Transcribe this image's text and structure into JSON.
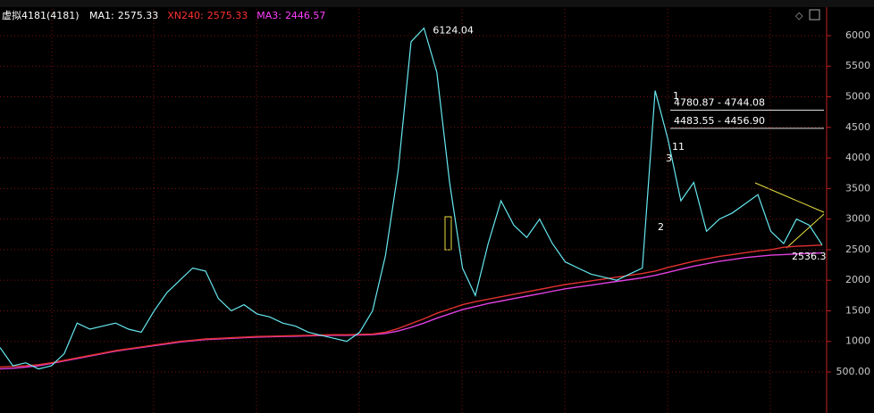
{
  "chart_data": {
    "type": "line",
    "title": "虚拟4181(4181)",
    "categories": [
      null,
      null,
      null,
      null,
      null,
      null,
      null,
      null,
      null,
      null,
      null,
      null,
      null,
      null,
      null,
      null,
      null,
      null,
      null,
      null,
      null,
      null,
      null,
      null,
      null,
      null,
      null,
      null,
      null,
      null,
      null,
      null,
      null,
      null,
      null,
      null,
      null,
      null,
      null,
      null,
      null,
      null,
      null,
      null,
      null,
      null,
      null,
      null,
      null,
      null,
      null,
      null,
      null,
      null,
      null,
      null,
      null,
      null,
      null,
      null,
      null,
      null,
      null,
      null,
      null
    ],
    "series": [
      {
        "name": "MA1:",
        "color": "#66e8f0",
        "label_color": "#ffffff",
        "values": [
          900,
          600,
          650,
          550,
          600,
          800,
          1300,
          1200,
          1250,
          1300,
          1200,
          1150,
          1500,
          1800,
          2000,
          2200,
          2150,
          1700,
          1500,
          1600,
          1450,
          1400,
          1300,
          1250,
          1150,
          1100,
          1050,
          1000,
          1150,
          1500,
          2400,
          3800,
          5900,
          6124.04,
          5400,
          3600,
          2200,
          1750,
          2600,
          3300,
          2900,
          2700,
          3000,
          2600,
          2300,
          2200,
          2100,
          2050,
          2000,
          2100,
          2200,
          5100,
          4300,
          3300,
          3600,
          2800,
          3000,
          3100,
          3250,
          3400,
          2800,
          2600,
          3000,
          2900,
          2575.33
        ]
      },
      {
        "name": "XN240:",
        "color": "#e03030",
        "label_color": "#ff3030",
        "values": [
          580,
          590,
          600,
          620,
          650,
          690,
          730,
          770,
          810,
          850,
          880,
          910,
          940,
          970,
          1000,
          1020,
          1040,
          1050,
          1060,
          1070,
          1080,
          1085,
          1090,
          1095,
          1100,
          1105,
          1110,
          1110,
          1115,
          1120,
          1150,
          1210,
          1290,
          1370,
          1460,
          1530,
          1600,
          1650,
          1690,
          1730,
          1770,
          1810,
          1850,
          1890,
          1930,
          1960,
          1990,
          2020,
          2050,
          2080,
          2110,
          2150,
          2210,
          2260,
          2310,
          2350,
          2390,
          2420,
          2450,
          2480,
          2500,
          2540,
          2555,
          2565,
          2575.33
        ]
      },
      {
        "name": "MA3:",
        "color": "#e040e0",
        "label_color": "#ff40ff",
        "values": [
          550,
          560,
          580,
          600,
          640,
          680,
          720,
          760,
          800,
          840,
          870,
          900,
          930,
          960,
          990,
          1010,
          1030,
          1040,
          1050,
          1060,
          1070,
          1075,
          1080,
          1085,
          1090,
          1095,
          1100,
          1100,
          1105,
          1110,
          1130,
          1170,
          1230,
          1300,
          1380,
          1450,
          1520,
          1570,
          1620,
          1660,
          1700,
          1740,
          1780,
          1820,
          1860,
          1890,
          1920,
          1950,
          1980,
          2010,
          2040,
          2080,
          2130,
          2180,
          2230,
          2270,
          2310,
          2340,
          2370,
          2390,
          2410,
          2420,
          2430,
          2440,
          2446.57
        ]
      }
    ],
    "ylim": [
      -171,
      6583
    ],
    "yticks": [
      {
        "value": 500,
        "label": "500.00"
      },
      1000,
      1500,
      2000,
      2500,
      3000,
      3500,
      4000,
      4500,
      5000,
      5500,
      6000
    ],
    "grid": true,
    "levels": [
      {
        "value": 4780.87,
        "label": "4780.87 - 4744.08"
      },
      {
        "value": 4483.55,
        "label": "4483.55 - 4456.90"
      }
    ],
    "low_label": 2536.3,
    "wave_labels": [
      "1",
      "3",
      "11",
      "2"
    ]
  }
}
